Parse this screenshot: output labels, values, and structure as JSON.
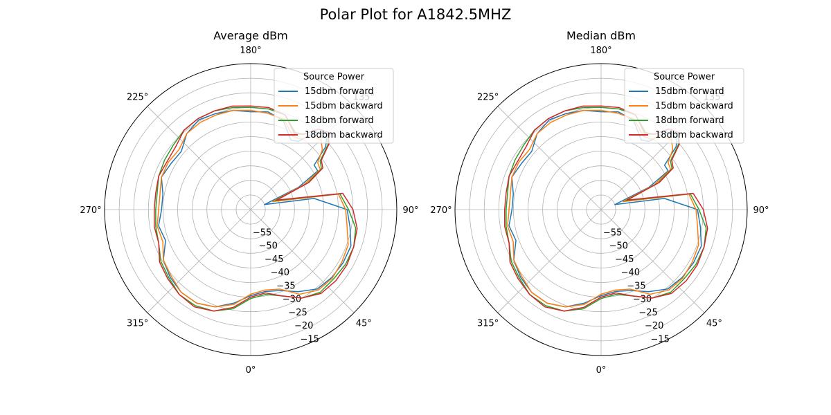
{
  "figure": {
    "suptitle": "Polar Plot for A1842.5MHZ"
  },
  "colors": {
    "c15f": "#1f77b4",
    "c15b": "#ff7f0e",
    "c18f": "#2ca02c",
    "c18b": "#d62728"
  },
  "chart_data": [
    {
      "type": "polar-line",
      "title": "Average dBm",
      "theta_zero_location": "S",
      "theta_direction": "counterclockwise",
      "theta_ticks": [
        "0°",
        "45°",
        "90°",
        "135°",
        "180°",
        "225°",
        "270°",
        "315°"
      ],
      "rlim": [
        -60,
        -10
      ],
      "r_ticks": [
        "−55",
        "−50",
        "−45",
        "−40",
        "−35",
        "−30",
        "−25",
        "−20",
        "−15"
      ],
      "legend": {
        "title": "Source Power",
        "placement": "top-right"
      },
      "series_labels": [
        "15dbm forward",
        "15dbm backward",
        "18dbm forward",
        "18dbm backward"
      ],
      "series": [
        {
          "name": "15dbm forward",
          "theta_deg": [
            0,
            10,
            20,
            30,
            40,
            50,
            60,
            70,
            80,
            90,
            100,
            110,
            115,
            120,
            125,
            130,
            135,
            140,
            145,
            150,
            160,
            170,
            180,
            190,
            200,
            210,
            220,
            230,
            240,
            250,
            260,
            270,
            280,
            290,
            300,
            310,
            320,
            330,
            340,
            350
          ],
          "r": [
            -30.5,
            -31.5,
            -30.5,
            -27.5,
            -24.5,
            -23.8,
            -23.5,
            -23.5,
            -25.5,
            -27,
            -38,
            -55,
            -42,
            -33.5,
            -33.5,
            -26.5,
            -23,
            -25.5,
            -31.5,
            -32.5,
            -27.5,
            -26,
            -26.5,
            -25.5,
            -25,
            -24.5,
            -26,
            -29,
            -28.5,
            -27.5,
            -29.5,
            -29.5,
            -28,
            -29,
            -25.5,
            -24,
            -23,
            -23,
            -24.5,
            -27.5
          ]
        },
        {
          "name": "15dbm backward",
          "theta_deg": [
            0,
            10,
            20,
            30,
            40,
            50,
            60,
            70,
            80,
            90,
            100,
            110,
            115,
            120,
            125,
            130,
            135,
            140,
            145,
            150,
            160,
            170,
            180,
            190,
            200,
            210,
            220,
            230,
            240,
            250,
            260,
            270,
            280,
            290,
            300,
            310,
            320,
            330,
            340,
            350
          ],
          "r": [
            -31,
            -32,
            -31,
            -26.5,
            -24,
            -23.5,
            -24,
            -24.5,
            -26.5,
            -27.5,
            -29.5,
            -52,
            -40,
            -32.5,
            -32,
            -28,
            -26,
            -27.5,
            -30.5,
            -31,
            -27,
            -26.5,
            -26,
            -25.5,
            -25.5,
            -25.5,
            -26,
            -28,
            -27.5,
            -27.5,
            -28.5,
            -28.5,
            -27.5,
            -28,
            -25.5,
            -24.5,
            -23,
            -23,
            -24.5,
            -27
          ]
        },
        {
          "name": "18dbm forward",
          "theta_deg": [
            0,
            10,
            20,
            30,
            40,
            50,
            60,
            70,
            80,
            90,
            100,
            110,
            115,
            120,
            125,
            130,
            135,
            140,
            145,
            150,
            160,
            170,
            180,
            190,
            200,
            210,
            220,
            230,
            240,
            250,
            260,
            270,
            280,
            290,
            300,
            310,
            320,
            330,
            340,
            350
          ],
          "r": [
            -29.5,
            -30.5,
            -28.5,
            -25,
            -23,
            -23,
            -22.5,
            -22.5,
            -23.5,
            -26.5,
            -29,
            -51,
            -38.5,
            -32,
            -31,
            -25.5,
            -22.5,
            -24,
            -28.5,
            -29.5,
            -25.5,
            -25,
            -25,
            -24.5,
            -24,
            -24,
            -24.5,
            -25.5,
            -26,
            -26.5,
            -27.5,
            -27.5,
            -27,
            -26.5,
            -24.5,
            -23.5,
            -22,
            -22,
            -23,
            -25.5
          ]
        },
        {
          "name": "18dbm backward",
          "theta_deg": [
            0,
            10,
            20,
            30,
            40,
            50,
            60,
            70,
            80,
            90,
            100,
            110,
            115,
            120,
            125,
            130,
            135,
            140,
            145,
            150,
            160,
            170,
            180,
            190,
            200,
            210,
            220,
            230,
            240,
            250,
            260,
            270,
            280,
            290,
            300,
            310,
            320,
            330,
            340,
            350
          ],
          "r": [
            -30,
            -31,
            -28.5,
            -25,
            -22.5,
            -22,
            -22,
            -22.5,
            -23,
            -25,
            -28,
            -50.5,
            -38,
            -31.5,
            -30.5,
            -25,
            -22.5,
            -24,
            -28.5,
            -30,
            -25.5,
            -24.5,
            -24.5,
            -24,
            -24,
            -24,
            -24.5,
            -26.5,
            -27,
            -26.5,
            -27,
            -27,
            -26.5,
            -26.5,
            -24,
            -23,
            -22,
            -21.5,
            -23,
            -26
          ]
        }
      ]
    },
    {
      "type": "polar-line",
      "title": "Median dBm",
      "theta_zero_location": "S",
      "theta_direction": "counterclockwise",
      "theta_ticks": [
        "0°",
        "45°",
        "90°",
        "135°",
        "180°",
        "225°",
        "270°",
        "315°"
      ],
      "rlim": [
        -60,
        -10
      ],
      "r_ticks": [
        "−55",
        "−50",
        "−45",
        "−40",
        "−35",
        "−30",
        "−25",
        "−20",
        "−15"
      ],
      "legend": {
        "title": "Source Power",
        "placement": "top-right"
      },
      "series_labels": [
        "15dbm forward",
        "15dbm backward",
        "18dbm forward",
        "18dbm backward"
      ],
      "series": [
        {
          "name": "15dbm forward",
          "theta_deg": [
            0,
            10,
            20,
            30,
            40,
            50,
            60,
            70,
            80,
            90,
            100,
            110,
            115,
            120,
            125,
            130,
            135,
            140,
            145,
            150,
            160,
            170,
            180,
            190,
            200,
            210,
            220,
            230,
            240,
            250,
            260,
            270,
            280,
            290,
            300,
            310,
            320,
            330,
            340,
            350
          ],
          "r": [
            -30.5,
            -31.5,
            -30.5,
            -27.5,
            -24.5,
            -23.8,
            -23.5,
            -23.5,
            -25.5,
            -27,
            -38,
            -55,
            -42,
            -33.5,
            -33.5,
            -26.5,
            -23,
            -25.5,
            -31.5,
            -32.5,
            -27.5,
            -26,
            -26.5,
            -25.5,
            -25,
            -24.5,
            -26,
            -29,
            -28.5,
            -27.5,
            -29.5,
            -29.5,
            -28,
            -29,
            -25.5,
            -24,
            -23,
            -23,
            -24.5,
            -27.5
          ]
        },
        {
          "name": "15dbm backward",
          "theta_deg": [
            0,
            10,
            20,
            30,
            40,
            50,
            60,
            70,
            80,
            90,
            100,
            110,
            115,
            120,
            125,
            130,
            135,
            140,
            145,
            150,
            160,
            170,
            180,
            190,
            200,
            210,
            220,
            230,
            240,
            250,
            260,
            270,
            280,
            290,
            300,
            310,
            320,
            330,
            340,
            350
          ],
          "r": [
            -31,
            -32,
            -31,
            -26.5,
            -24,
            -23.5,
            -24,
            -24.5,
            -26.5,
            -27.5,
            -29.5,
            -52,
            -40,
            -32.5,
            -32,
            -28,
            -26,
            -27.5,
            -30.5,
            -31,
            -27,
            -26.5,
            -26,
            -25.5,
            -25.5,
            -25.5,
            -26,
            -28,
            -27.5,
            -27.5,
            -28.5,
            -28.5,
            -27.5,
            -28,
            -25.5,
            -24.5,
            -23,
            -23,
            -24.5,
            -27
          ]
        },
        {
          "name": "18dbm forward",
          "theta_deg": [
            0,
            10,
            20,
            30,
            40,
            50,
            60,
            70,
            80,
            90,
            100,
            110,
            115,
            120,
            125,
            130,
            135,
            140,
            145,
            150,
            160,
            170,
            180,
            190,
            200,
            210,
            220,
            230,
            240,
            250,
            260,
            270,
            280,
            290,
            300,
            310,
            320,
            330,
            340,
            350
          ],
          "r": [
            -29.5,
            -30.5,
            -28.5,
            -25,
            -23,
            -23,
            -22.5,
            -22.5,
            -23.5,
            -26.5,
            -29,
            -51,
            -38.5,
            -32,
            -31,
            -25.5,
            -22.5,
            -24,
            -28.5,
            -29.5,
            -25.5,
            -25,
            -25,
            -24.5,
            -24,
            -24,
            -24.5,
            -25.5,
            -26,
            -26.5,
            -27.5,
            -27.5,
            -27,
            -26.5,
            -24.5,
            -23.5,
            -22,
            -22,
            -23,
            -25.5
          ]
        },
        {
          "name": "18dbm backward",
          "theta_deg": [
            0,
            10,
            20,
            30,
            40,
            50,
            60,
            70,
            80,
            90,
            100,
            110,
            115,
            120,
            125,
            130,
            135,
            140,
            145,
            150,
            160,
            170,
            180,
            190,
            200,
            210,
            220,
            230,
            240,
            250,
            260,
            270,
            280,
            290,
            300,
            310,
            320,
            330,
            340,
            350
          ],
          "r": [
            -30,
            -31,
            -28.5,
            -25,
            -22.5,
            -22,
            -22,
            -22.5,
            -23,
            -25,
            -28,
            -50.5,
            -38,
            -31.5,
            -30.5,
            -25,
            -22.5,
            -24,
            -28.5,
            -30,
            -25.5,
            -24.5,
            -24.5,
            -24,
            -24,
            -24,
            -24.5,
            -26.5,
            -27,
            -26.5,
            -27,
            -27,
            -26.5,
            -26.5,
            -24,
            -23,
            -22,
            -21.5,
            -23,
            -26
          ]
        }
      ]
    }
  ]
}
